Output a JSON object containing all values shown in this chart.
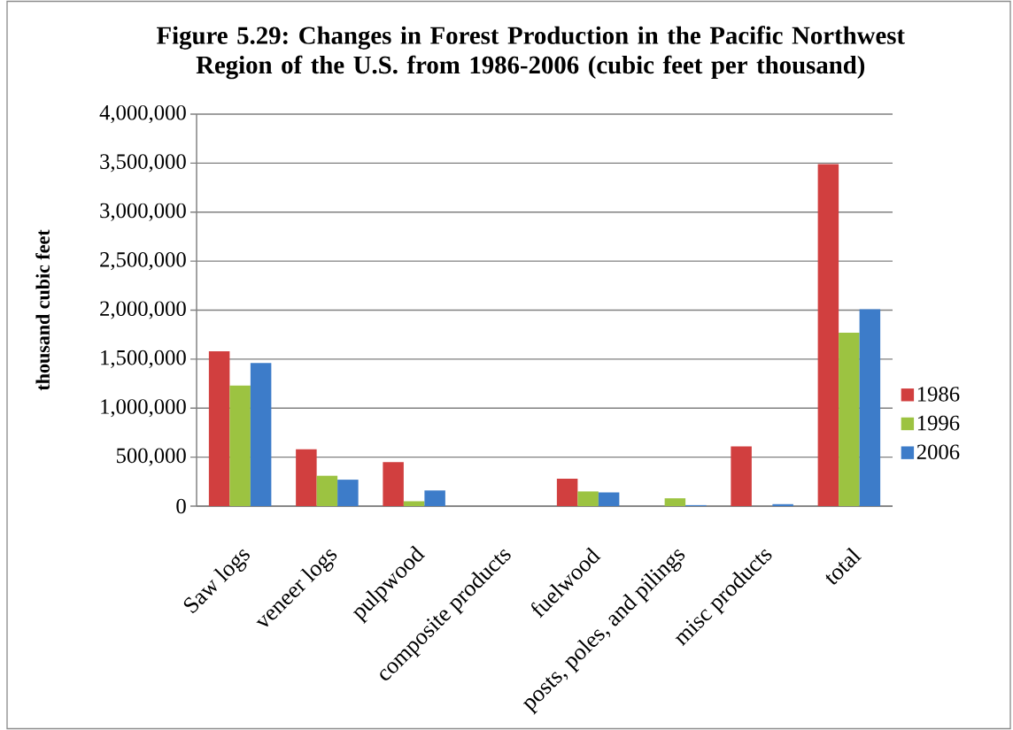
{
  "chart_data": {
    "type": "bar",
    "title": "Figure 5.29: Changes in Forest Production in the Pacific Northwest Region of the U.S. from 1986-2006 (cubic feet per thousand)",
    "ylabel": "thousand cubic feet",
    "categories": [
      "Saw logs",
      "veneer logs",
      "pulpwood",
      "composite products",
      "fuelwood",
      "posts, poles, and pilings",
      "misc products",
      "total"
    ],
    "series": [
      {
        "name": "1986",
        "color": "#d13f3f",
        "values": [
          1580000,
          580000,
          450000,
          0,
          280000,
          0,
          610000,
          3490000
        ]
      },
      {
        "name": "1996",
        "color": "#9cc341",
        "values": [
          1230000,
          310000,
          50000,
          0,
          150000,
          80000,
          0,
          1770000
        ]
      },
      {
        "name": "2006",
        "color": "#3d7cc9",
        "values": [
          1460000,
          270000,
          160000,
          0,
          140000,
          10000,
          20000,
          2010000
        ]
      }
    ],
    "ylim": [
      0,
      4000000
    ],
    "yticks": [
      0,
      {
        "value": 500000,
        "label": "500,000"
      },
      {
        "value": 1000000,
        "label": "1,000,000"
      },
      {
        "value": 1500000,
        "label": "1,500,000"
      },
      {
        "value": 2000000,
        "label": "2,000,000"
      },
      {
        "value": 2500000,
        "label": "2,500,000"
      },
      {
        "value": 3000000,
        "label": "3,000,000"
      },
      {
        "value": 3500000,
        "label": "3,500,000"
      },
      {
        "value": 4000000,
        "label": "4,000,000"
      }
    ],
    "grid": "y",
    "legend": "right"
  }
}
